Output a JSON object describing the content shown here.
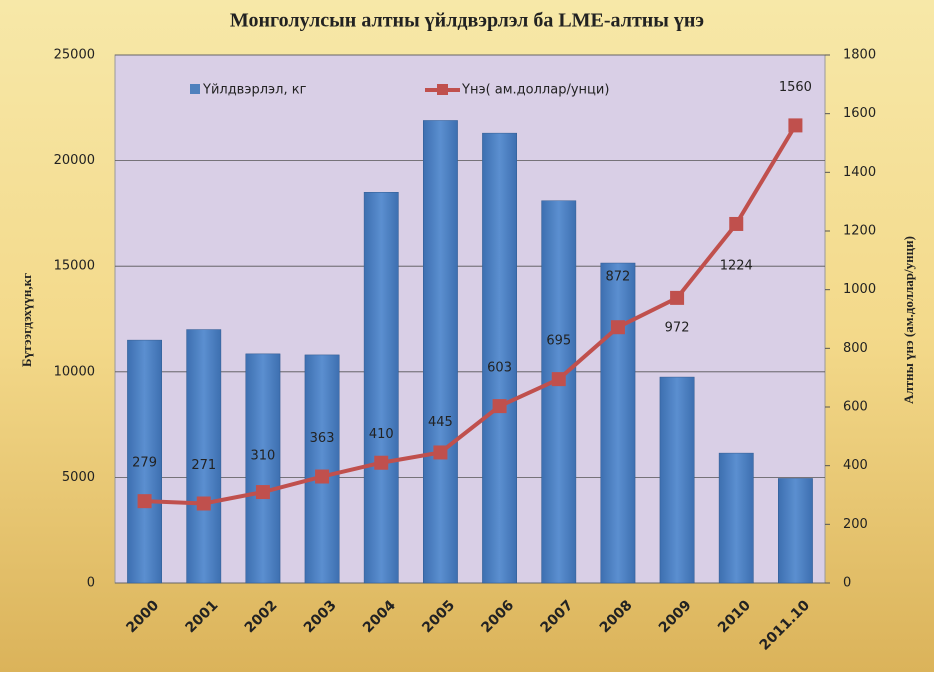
{
  "chart_data": {
    "type": "bar",
    "title": "Монголулсын алтны үйлдвэрлэл ба LME-алтны үнэ",
    "ylabel": "Бүтээгдэхүүн,кг",
    "y2label": "Алтны үнэ (ам.доллар/унци)",
    "categories": [
      "2000",
      "2001",
      "2002",
      "2003",
      "2004",
      "2005",
      "2006",
      "2007",
      "2008",
      "2009",
      "2010",
      "2011.10"
    ],
    "series": [
      {
        "name": "Үйлдвэрлэл, кг",
        "type": "bar",
        "color": "#4f81bd",
        "values": [
          11500,
          12000,
          10850,
          10800,
          18500,
          21900,
          21300,
          18100,
          15150,
          9750,
          6150,
          4950
        ]
      },
      {
        "name": "Үнэ( ам.доллар/унци)",
        "type": "line",
        "axis": "y2",
        "color": "#c0504d",
        "values": [
          279,
          271,
          310,
          363,
          410,
          445,
          603,
          695,
          872,
          972,
          1224,
          1560
        ]
      }
    ],
    "ylim": [
      0,
      25000
    ],
    "yticks": [
      0,
      5000,
      10000,
      15000,
      20000,
      25000
    ],
    "y2lim": [
      0,
      1800
    ],
    "y2ticks": [
      0,
      200,
      400,
      600,
      800,
      1000,
      1200,
      1400,
      1600,
      1800
    ],
    "grid": true
  }
}
